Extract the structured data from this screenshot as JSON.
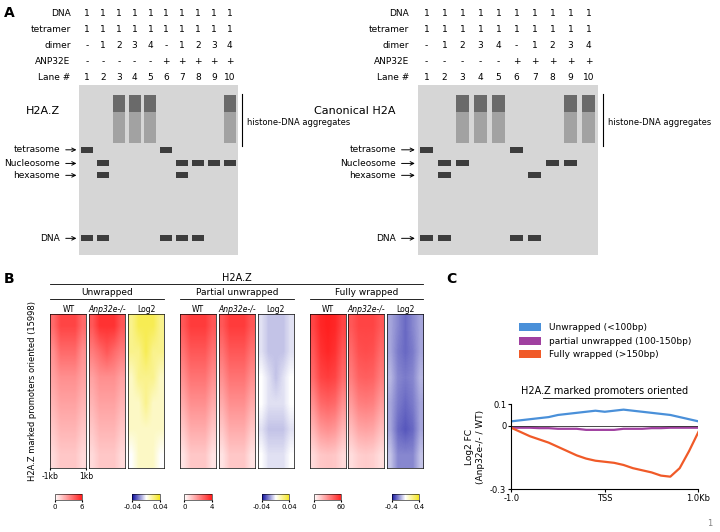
{
  "panel_labels": [
    "A",
    "B",
    "C"
  ],
  "page_number": "1",
  "gels": [
    {
      "title": "H2A.Z",
      "rows": [
        {
          "label": "DNA",
          "values": [
            "1",
            "1",
            "1",
            "1",
            "1",
            "1",
            "1",
            "1",
            "1",
            "1"
          ]
        },
        {
          "label": "tetramer",
          "values": [
            "1",
            "1",
            "1",
            "1",
            "1",
            "1",
            "1",
            "1",
            "1",
            "1"
          ]
        },
        {
          "label": "dimer",
          "values": [
            "-",
            "1",
            "2",
            "3",
            "4",
            "-",
            "1",
            "2",
            "3",
            "4"
          ]
        },
        {
          "label": "ANP32E",
          "values": [
            "-",
            "-",
            "-",
            "-",
            "-",
            "+",
            "+",
            "+",
            "+",
            "+"
          ]
        },
        {
          "label": "Lane #",
          "values": [
            "1",
            "2",
            "3",
            "4",
            "5",
            "6",
            "7",
            "8",
            "9",
            "10"
          ]
        }
      ],
      "band_labels": [
        "tetrasome",
        "Nucleosome",
        "hexasome",
        "DNA"
      ],
      "aggregate_label": "histone-DNA aggregates",
      "lanes": [
        [
          "tetrasome",
          "DNA"
        ],
        [
          "Nucleosome",
          "hexasome",
          "DNA"
        ],
        [
          "histone-DNA aggregates"
        ],
        [
          "histone-DNA aggregates"
        ],
        [
          "histone-DNA aggregates"
        ],
        [
          "tetrasome",
          "DNA"
        ],
        [
          "Nucleosome",
          "hexasome",
          "DNA"
        ],
        [
          "Nucleosome",
          "DNA"
        ],
        [
          "Nucleosome"
        ],
        [
          "Nucleosome",
          "histone-DNA aggregates"
        ]
      ]
    },
    {
      "title": "Canonical H2A",
      "rows": [
        {
          "label": "DNA",
          "values": [
            "1",
            "1",
            "1",
            "1",
            "1",
            "1",
            "1",
            "1",
            "1",
            "1"
          ]
        },
        {
          "label": "tetramer",
          "values": [
            "1",
            "1",
            "1",
            "1",
            "1",
            "1",
            "1",
            "1",
            "1",
            "1"
          ]
        },
        {
          "label": "dimer",
          "values": [
            "-",
            "1",
            "2",
            "3",
            "4",
            "-",
            "1",
            "2",
            "3",
            "4"
          ]
        },
        {
          "label": "ANP32E",
          "values": [
            "-",
            "-",
            "-",
            "-",
            "-",
            "+",
            "+",
            "+",
            "+",
            "+"
          ]
        },
        {
          "label": "Lane #",
          "values": [
            "1",
            "2",
            "3",
            "4",
            "5",
            "6",
            "7",
            "8",
            "9",
            "10"
          ]
        }
      ],
      "band_labels": [
        "tetrasome",
        "Nucleosome",
        "hexasome",
        "DNA"
      ],
      "aggregate_label": "histone-DNA aggregates",
      "lanes": [
        [
          "tetrasome",
          "DNA"
        ],
        [
          "hexasome",
          "Nucleosome",
          "DNA"
        ],
        [
          "Nucleosome",
          "histone-DNA aggregates"
        ],
        [
          "histone-DNA aggregates"
        ],
        [
          "histone-DNA aggregates"
        ],
        [
          "tetrasome",
          "DNA"
        ],
        [
          "hexasome",
          "DNA"
        ],
        [
          "Nucleosome"
        ],
        [
          "Nucleosome",
          "histone-DNA aggregates"
        ],
        [
          "histone-DNA aggregates"
        ]
      ]
    }
  ],
  "heatmaps": {
    "title": "H2A.Z",
    "y_label": "H2A.Z marked promoters oriented (15998)",
    "x_labels": [
      "-1kb",
      "1kb"
    ],
    "columns": [
      "WT",
      "Anp32e-/-",
      "Log2"
    ],
    "groups": [
      {
        "name": "Unwrapped",
        "signal_range": [
          0,
          6
        ],
        "signal_ticks": [
          0,
          6
        ],
        "log2_range": [
          -0.04,
          0.04
        ],
        "log2_ticks": [
          -0.04,
          0.04
        ],
        "cells": [
          [
            [
              4,
              5,
              5,
              5,
              4
            ],
            [
              3,
              4,
              4,
              4,
              3
            ],
            [
              2.5,
              3,
              3,
              3,
              2.5
            ],
            [
              2,
              2.5,
              2.5,
              2.5,
              2
            ],
            [
              1.5,
              2,
              2,
              2,
              1.5
            ],
            [
              1,
              1.5,
              1.5,
              1.5,
              1
            ]
          ],
          [
            [
              4.5,
              5.5,
              5.5,
              5.5,
              4.5
            ],
            [
              3.5,
              4,
              4.5,
              4,
              3.5
            ],
            [
              2.5,
              3,
              3,
              3,
              2.5
            ],
            [
              2,
              2.5,
              2.5,
              2.5,
              2
            ],
            [
              1.5,
              2,
              2,
              2,
              1.5
            ],
            [
              1,
              1.5,
              1.5,
              1.5,
              1
            ]
          ],
          [
            [
              0.02,
              0.03,
              0.03,
              0.03,
              0.02
            ],
            [
              0.02,
              0.02,
              0.03,
              0.02,
              0.02
            ],
            [
              0.01,
              0.02,
              0.02,
              0.02,
              0.01
            ],
            [
              0.01,
              0.01,
              0.02,
              0.01,
              0.01
            ],
            [
              0.01,
              0.01,
              0.01,
              0.01,
              0.01
            ],
            [
              0,
              0.01,
              0.01,
              0.01,
              0
            ]
          ]
        ]
      },
      {
        "name": "Partial unwrapped",
        "signal_range": [
          0,
          4
        ],
        "signal_ticks": [
          0,
          4
        ],
        "log2_range": [
          -0.04,
          0.04
        ],
        "log2_ticks": [
          -0.04,
          0.04
        ],
        "cells": [
          [
            [
              3,
              3.5,
              3.5,
              3.5,
              3
            ],
            [
              2.5,
              3,
              3,
              3,
              2.5
            ],
            [
              2,
              2.5,
              2.5,
              2.5,
              2
            ],
            [
              1.5,
              2,
              2,
              2,
              1.5
            ],
            [
              1,
              1.5,
              1.5,
              1.5,
              1
            ],
            [
              0.5,
              1,
              1,
              1,
              0.5
            ]
          ],
          [
            [
              3,
              3.5,
              3.5,
              3.5,
              3
            ],
            [
              2.5,
              3,
              3,
              3,
              2.5
            ],
            [
              2,
              2.5,
              2.5,
              2.5,
              2
            ],
            [
              1.5,
              2,
              2,
              2,
              1.5
            ],
            [
              1,
              1.5,
              1.5,
              1.5,
              1
            ],
            [
              0.5,
              1,
              1,
              1,
              0.5
            ]
          ],
          [
            [
              -0.005,
              -0.01,
              -0.01,
              -0.01,
              -0.005
            ],
            [
              -0.005,
              -0.01,
              -0.01,
              -0.01,
              -0.005
            ],
            [
              0,
              -0.005,
              -0.01,
              -0.005,
              0
            ],
            [
              0,
              -0.005,
              -0.005,
              -0.005,
              0
            ],
            [
              -0.005,
              -0.01,
              -0.01,
              -0.01,
              -0.005
            ],
            [
              0,
              -0.005,
              -0.005,
              -0.005,
              0
            ]
          ]
        ]
      },
      {
        "name": "Fully wrapped",
        "signal_range": [
          0,
          60
        ],
        "signal_ticks": [
          0,
          60
        ],
        "log2_range": [
          -0.4,
          0.4
        ],
        "log2_ticks": [
          -0.4,
          0.4
        ],
        "cells": [
          [
            [
              50,
              58,
              60,
              58,
              50
            ],
            [
              45,
              55,
              58,
              55,
              45
            ],
            [
              40,
              50,
              52,
              50,
              40
            ],
            [
              30,
              40,
              42,
              40,
              30
            ],
            [
              20,
              28,
              30,
              28,
              20
            ],
            [
              10,
              15,
              16,
              15,
              10
            ]
          ],
          [
            [
              45,
              50,
              50,
              50,
              45
            ],
            [
              40,
              47,
              48,
              47,
              40
            ],
            [
              35,
              42,
              43,
              42,
              35
            ],
            [
              27,
              34,
              35,
              34,
              27
            ],
            [
              18,
              24,
              25,
              24,
              18
            ],
            [
              9,
              13,
              14,
              13,
              9
            ]
          ],
          [
            [
              -0.15,
              -0.2,
              -0.25,
              -0.2,
              -0.15
            ],
            [
              -0.15,
              -0.22,
              -0.25,
              -0.22,
              -0.15
            ],
            [
              -0.12,
              -0.2,
              -0.22,
              -0.2,
              -0.12
            ],
            [
              -0.15,
              -0.22,
              -0.25,
              -0.22,
              -0.15
            ],
            [
              -0.15,
              -0.25,
              -0.28,
              -0.25,
              -0.15
            ],
            [
              -0.1,
              -0.2,
              -0.2,
              -0.2,
              -0.1
            ]
          ]
        ]
      }
    ]
  },
  "chart_data": {
    "type": "line",
    "title": "H2A.Z marked promoters oriented",
    "y_label": "Log2 FC\n(Anp32e-/- / WT)",
    "x": [
      -1.0,
      -0.9,
      -0.8,
      -0.7,
      -0.6,
      -0.5,
      -0.4,
      -0.3,
      -0.2,
      -0.1,
      0.0,
      0.1,
      0.2,
      0.3,
      0.4,
      0.5,
      0.6,
      0.7,
      0.8,
      0.9,
      1.0
    ],
    "series": [
      {
        "name": "Unwrapped (<100bp)",
        "color": "#4a90d9",
        "values": [
          0.02,
          0.025,
          0.03,
          0.035,
          0.04,
          0.05,
          0.055,
          0.06,
          0.065,
          0.07,
          0.065,
          0.07,
          0.075,
          0.07,
          0.065,
          0.06,
          0.055,
          0.05,
          0.04,
          0.03,
          0.02
        ]
      },
      {
        "name": "partial unwrapped (100-150bp)",
        "color": "#a040a0",
        "values": [
          -0.01,
          -0.01,
          -0.01,
          -0.012,
          -0.012,
          -0.015,
          -0.015,
          -0.015,
          -0.02,
          -0.02,
          -0.02,
          -0.02,
          -0.015,
          -0.015,
          -0.015,
          -0.012,
          -0.012,
          -0.01,
          -0.01,
          -0.01,
          -0.01
        ]
      },
      {
        "name": "Fully wrapped (>150bp)",
        "color": "#f05a28",
        "values": [
          -0.01,
          -0.03,
          -0.05,
          -0.065,
          -0.08,
          -0.1,
          -0.12,
          -0.14,
          -0.155,
          -0.165,
          -0.17,
          -0.175,
          -0.185,
          -0.2,
          -0.21,
          -0.22,
          -0.235,
          -0.24,
          -0.2,
          -0.12,
          -0.03
        ]
      }
    ],
    "xlim": [
      -1.0,
      1.0
    ],
    "xticks": [
      {
        "value": -1.0,
        "label": "-1.0"
      },
      {
        "value": 0,
        "label": "TSS"
      },
      {
        "value": 1.0,
        "label": "1.0Kb"
      }
    ],
    "ylim": [
      -0.3,
      0.1
    ],
    "yticks": [
      -0.3,
      0,
      0.1
    ],
    "legend": "upper center"
  }
}
